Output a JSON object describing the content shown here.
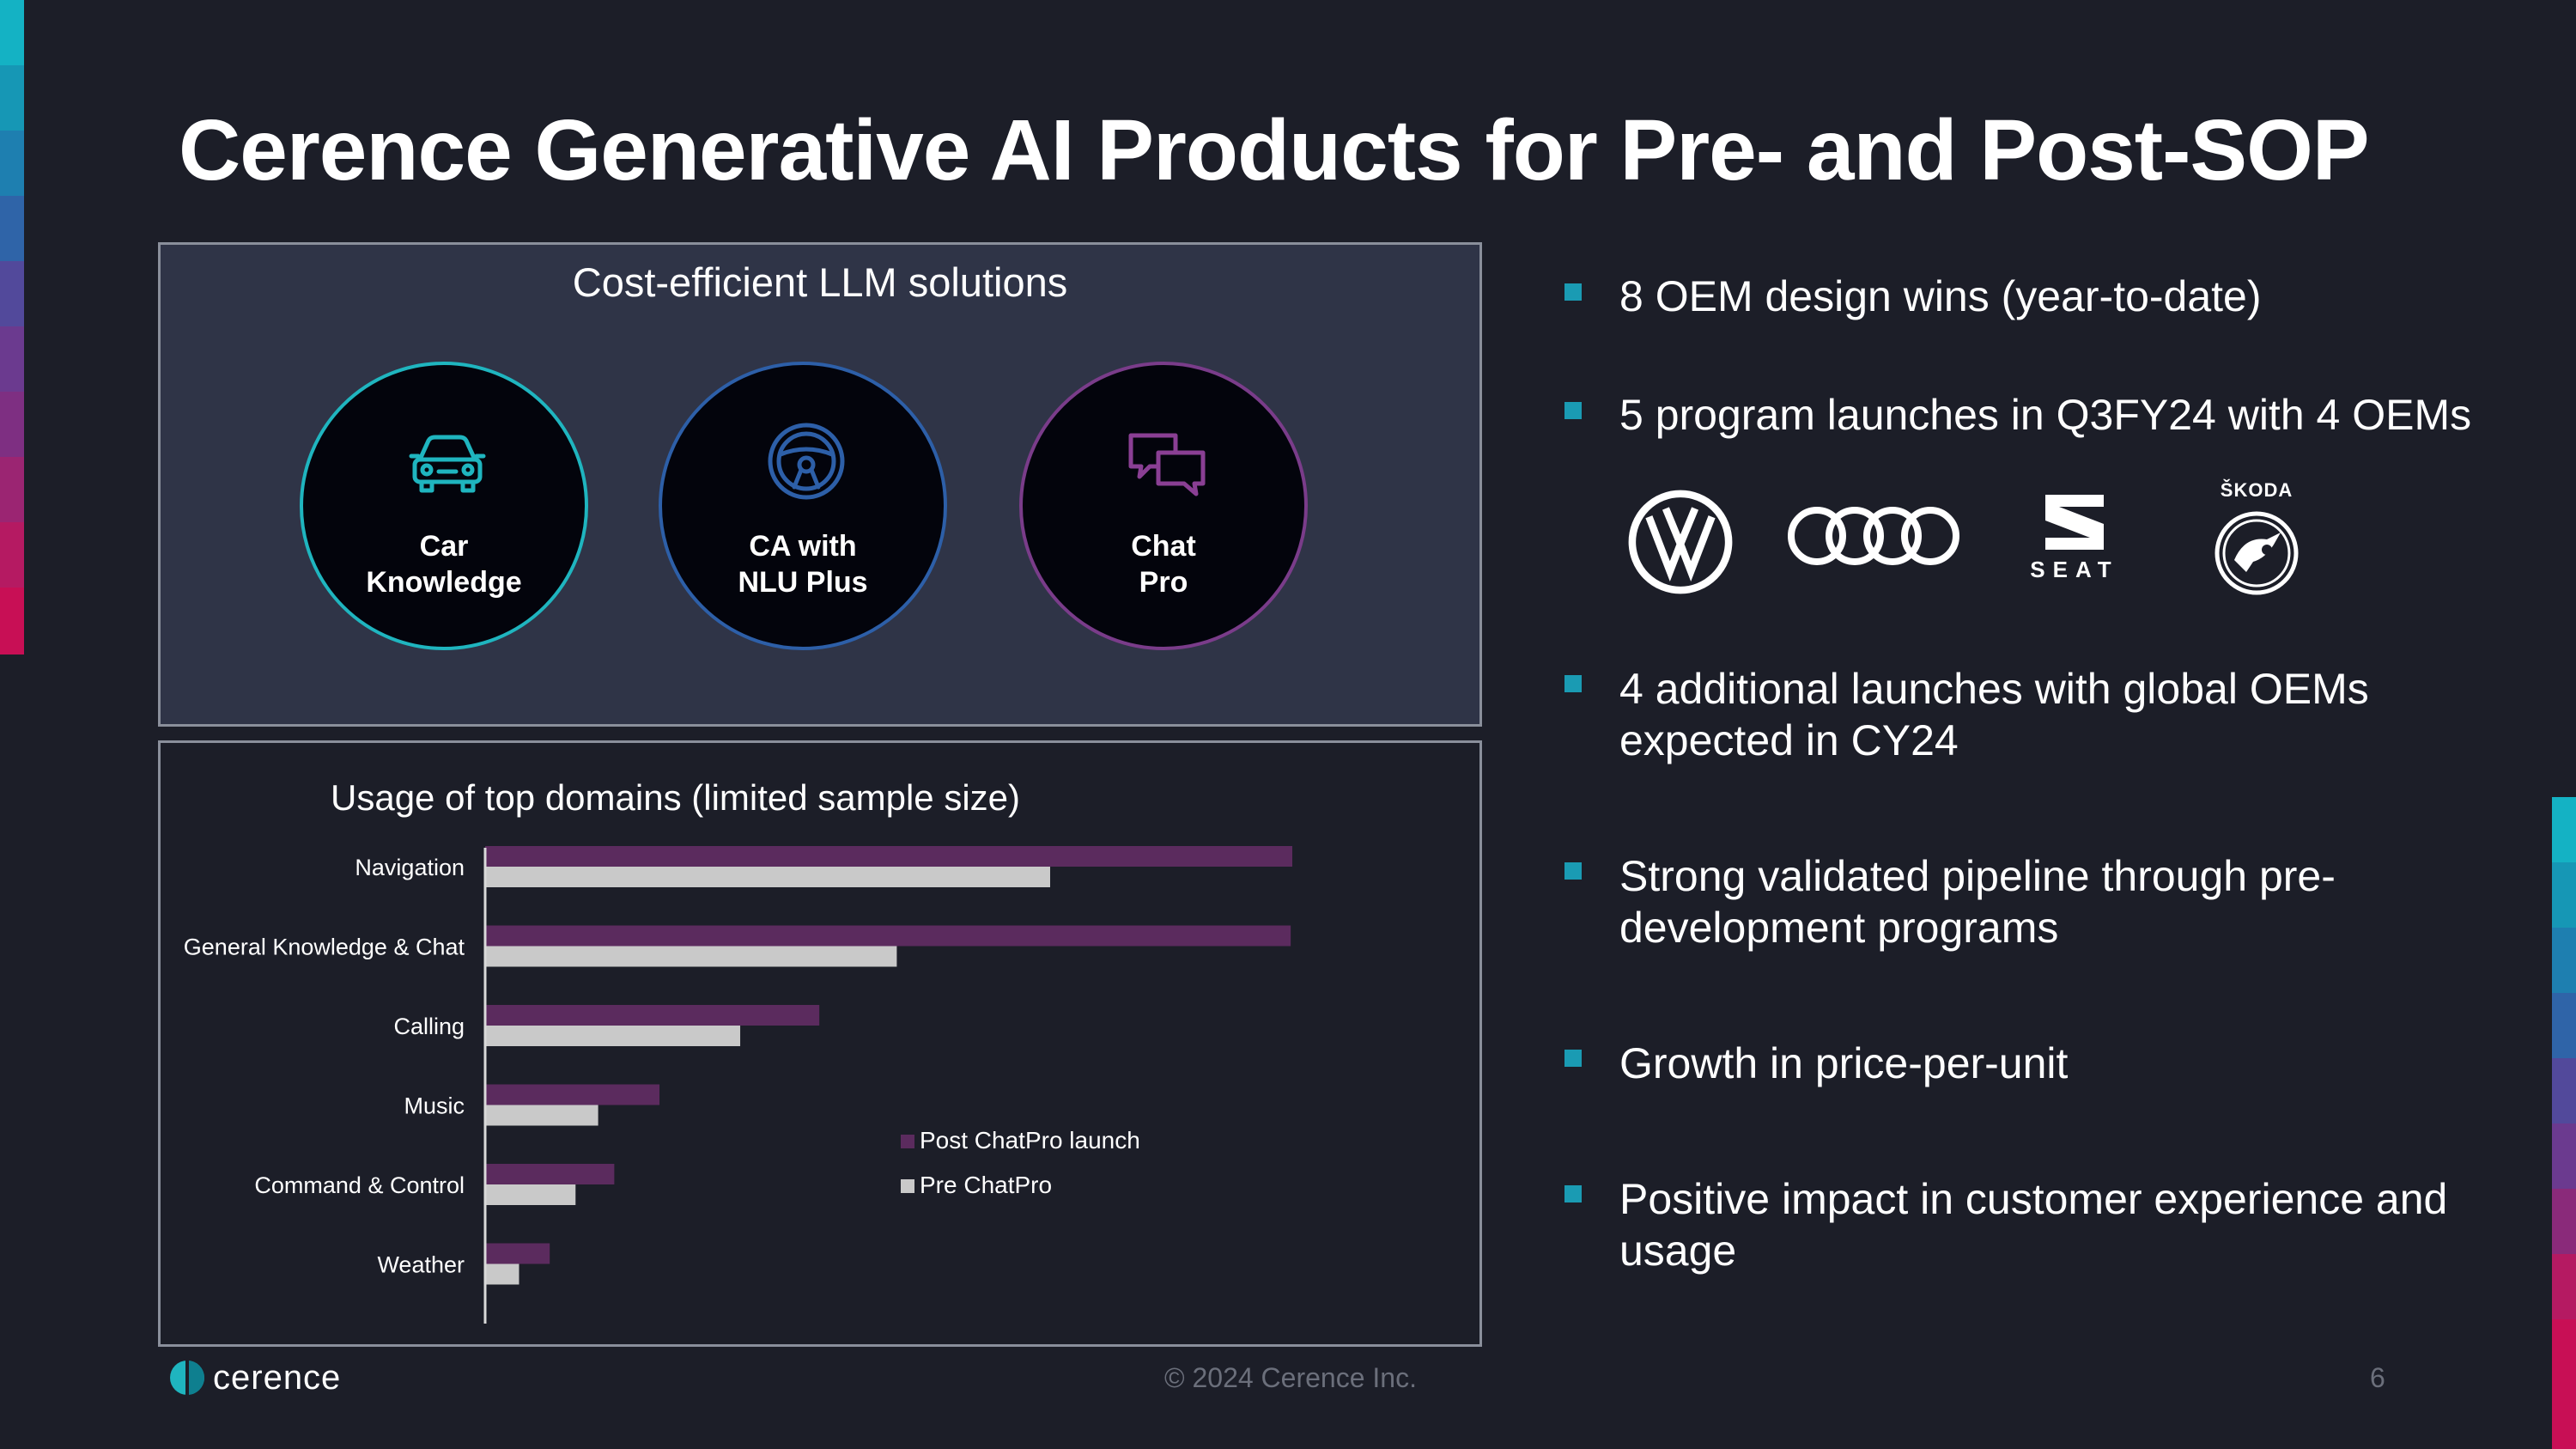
{
  "title": "Cerence Generative AI Products for Pre- and Post-SOP",
  "llm_panel": {
    "heading": "Cost-efficient LLM solutions",
    "products": [
      {
        "label": "Car\nKnowledge",
        "icon": "car-icon",
        "color": "#1fb5bf"
      },
      {
        "label": "CA with\nNLU Plus",
        "icon": "steering-wheel-icon",
        "color": "#2d5fa8"
      },
      {
        "label": "Chat\nPro",
        "icon": "chat-bubbles-icon",
        "color": "#7a3c8a"
      }
    ]
  },
  "chart_data": {
    "type": "bar",
    "orientation": "horizontal",
    "title": "Usage of top domains (limited sample size)",
    "categories": [
      "Navigation",
      "General Knowledge & Chat",
      "Calling",
      "Music",
      "Command & Control",
      "Weather"
    ],
    "series": [
      {
        "name": "Post ChatPro launch",
        "color": "#5b2b5e",
        "values": [
          100,
          99.8,
          41.4,
          21.6,
          16,
          8
        ]
      },
      {
        "name": "Pre ChatPro",
        "color": "#c9c9c9",
        "values": [
          70,
          51,
          31.6,
          14,
          11.2,
          4.2
        ]
      }
    ],
    "xlim": [
      0,
      100
    ],
    "legend": "center-right",
    "grid": false
  },
  "bullets": [
    {
      "text": "8 OEM design wins (year-to-date)"
    },
    {
      "text": "5 program launches in Q3FY24 with 4 OEMs"
    },
    {
      "text": "4 additional launches with global OEMs expected in CY24"
    },
    {
      "text": "Strong validated pipeline through pre-development programs"
    },
    {
      "text": "Growth in price-per-unit"
    },
    {
      "text": "Positive impact in customer experience and usage"
    }
  ],
  "oem_logos": {
    "vw": "vw-logo",
    "audi": "audi-logo",
    "seat_text": "SEAT",
    "skoda_text": "ŠKODA"
  },
  "footer": {
    "copyright": "© 2024 Cerence Inc.",
    "page": "6",
    "brand": "cerence"
  },
  "colors": {
    "background": "#1c1e28",
    "panel": "#2f3447",
    "accent": "#1a9bb3"
  }
}
